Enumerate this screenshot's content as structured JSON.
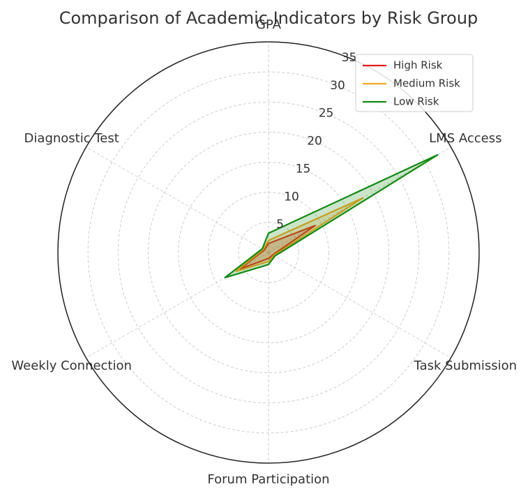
{
  "chart_data": {
    "type": "radar",
    "title": "Comparison of Academic Indicators by Risk Group",
    "categories": [
      "GPA",
      "LMS Access",
      "Task Submission",
      "Forum Participation",
      "Weekly Connection",
      "Diagnostic Test"
    ],
    "series": [
      {
        "name": "High Risk",
        "color": "#e41a1c",
        "values": [
          1.5,
          9,
          0.8,
          1,
          5.5,
          0.8
        ]
      },
      {
        "name": "Medium Risk",
        "color": "#f5a623",
        "values": [
          2,
          18.2,
          1,
          1.5,
          6.3,
          1
        ]
      },
      {
        "name": "Low Risk",
        "color": "#138a13",
        "values": [
          3.2,
          32.5,
          1.2,
          2,
          8.4,
          1.2
        ]
      }
    ],
    "ylim": [
      0,
      35
    ],
    "yticks": [
      5,
      10,
      15,
      20,
      25,
      30,
      35
    ],
    "grid": true,
    "legend": "upper right"
  }
}
